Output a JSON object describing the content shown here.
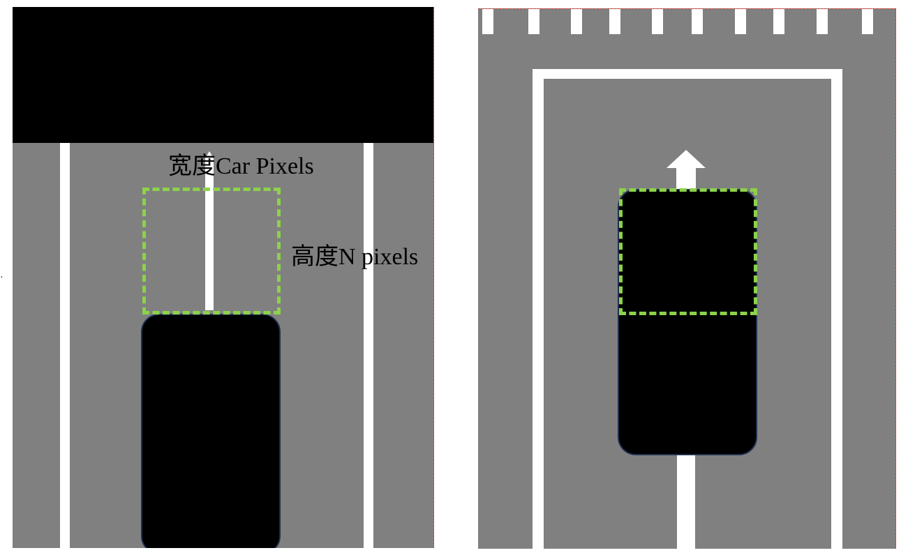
{
  "labels": {
    "width": "宽度Car Pixels",
    "height": "高度N pixels"
  },
  "colors": {
    "road": "#808080",
    "marking": "#ffffff",
    "car": "#000000",
    "roi_box": "#8cd24a",
    "frame_border": "#e0342a"
  },
  "icons": {
    "direction": "forward-arrow-icon"
  }
}
